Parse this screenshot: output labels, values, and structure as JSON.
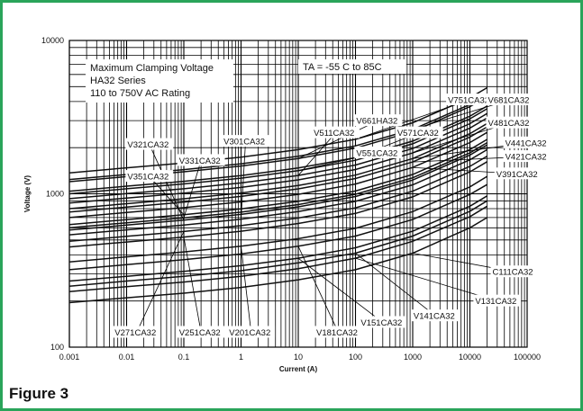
{
  "figure_label": "Figure 3",
  "chart_data": {
    "type": "line",
    "title_lines": [
      "Maximum Clamping Voltage",
      "HA32  Series",
      "110 to 750V AC Rating"
    ],
    "condition": "TA = -55 C to 85C",
    "xlabel": "Current (A)",
    "ylabel": "Voltage (V)",
    "x_scale": "log",
    "y_scale": "log",
    "xlim": [
      0.001,
      100000
    ],
    "ylim": [
      100,
      10000
    ],
    "x_ticks": [
      "0.001",
      "0.01",
      "0.1",
      "1",
      "10",
      "100",
      "1000",
      "10000",
      "100000"
    ],
    "y_ticks": [
      "100",
      "1000",
      "10000"
    ],
    "grid": true,
    "series": [
      {
        "name": "C111CA32",
        "x": [
          0.001,
          0.01,
          0.1,
          1,
          10,
          100,
          1000,
          10000,
          20000
        ],
        "y": [
          195,
          210,
          225,
          245,
          275,
          320,
          410,
          600,
          700
        ]
      },
      {
        "name": "V131CA32",
        "x": [
          0.001,
          0.01,
          0.1,
          1,
          10,
          100,
          1000,
          10000,
          20000
        ],
        "y": [
          230,
          248,
          266,
          290,
          325,
          380,
          490,
          710,
          830
        ]
      },
      {
        "name": "V141CA32",
        "x": [
          0.001,
          0.01,
          0.1,
          1,
          10,
          100,
          1000,
          10000,
          20000
        ],
        "y": [
          250,
          270,
          290,
          315,
          355,
          410,
          530,
          770,
          900
        ]
      },
      {
        "name": "V151CA32",
        "x": [
          0.001,
          0.01,
          0.1,
          1,
          10,
          100,
          1000,
          10000,
          20000
        ],
        "y": [
          270,
          290,
          312,
          340,
          380,
          445,
          570,
          830,
          970
        ]
      },
      {
        "name": "V181CA32",
        "x": [
          0.001,
          0.01,
          0.1,
          1,
          10,
          100,
          1000,
          10000,
          20000
        ],
        "y": [
          320,
          345,
          372,
          405,
          455,
          530,
          680,
          990,
          1150
        ]
      },
      {
        "name": "V201CA32",
        "x": [
          0.001,
          0.01,
          0.1,
          1,
          10,
          100,
          1000,
          10000,
          20000
        ],
        "y": [
          360,
          388,
          418,
          455,
          510,
          595,
          765,
          1110,
          1300
        ]
      },
      {
        "name": "V251CA32",
        "x": [
          0.001,
          0.01,
          0.1,
          1,
          10,
          100,
          1000,
          10000,
          20000
        ],
        "y": [
          450,
          485,
          522,
          570,
          640,
          745,
          955,
          1390,
          1620
        ]
      },
      {
        "name": "V271CA32",
        "x": [
          0.001,
          0.01,
          0.1,
          1,
          10,
          100,
          1000,
          10000,
          20000
        ],
        "y": [
          490,
          528,
          568,
          620,
          695,
          810,
          1040,
          1510,
          1760
        ]
      },
      {
        "name": "V301CA32",
        "x": [
          0.001,
          0.01,
          0.1,
          1,
          10,
          100,
          1000,
          10000,
          20000
        ],
        "y": [
          540,
          582,
          626,
          683,
          765,
          893,
          1145,
          1665,
          1940
        ]
      },
      {
        "name": "V321CA32",
        "x": [
          0.001,
          0.01,
          0.1,
          1,
          10,
          100,
          1000,
          10000,
          20000
        ],
        "y": [
          580,
          625,
          673,
          734,
          822,
          960,
          1230,
          1790,
          2085
        ]
      },
      {
        "name": "V331CA32",
        "x": [
          0.001,
          0.01,
          0.1,
          1,
          10,
          100,
          1000,
          10000,
          20000
        ],
        "y": [
          600,
          647,
          696,
          759,
          850,
          993,
          1272,
          1850,
          2155
        ]
      },
      {
        "name": "V351CA32",
        "x": [
          0.001,
          0.01,
          0.1,
          1,
          10,
          100,
          1000,
          10000,
          20000
        ],
        "y": [
          630,
          679,
          731,
          797,
          893,
          1043,
          1336,
          1943,
          2265
        ]
      },
      {
        "name": "V391CA32",
        "x": [
          0.001,
          0.01,
          0.1,
          1,
          10,
          100,
          1000,
          10000,
          20000
        ],
        "y": [
          700,
          755,
          812,
          886,
          992,
          1159,
          1485,
          2160,
          2515
        ]
      },
      {
        "name": "V421CA32",
        "x": [
          0.001,
          0.01,
          0.1,
          1,
          10,
          100,
          1000,
          10000,
          20000
        ],
        "y": [
          760,
          819,
          882,
          962,
          1077,
          1258,
          1612,
          2345,
          2730
        ]
      },
      {
        "name": "V441CA32",
        "x": [
          0.001,
          0.01,
          0.1,
          1,
          10,
          100,
          1000,
          10000,
          20000
        ],
        "y": [
          800,
          862,
          928,
          1012,
          1134,
          1325,
          1697,
          2468,
          2875
        ]
      },
      {
        "name": "V481CA32",
        "x": [
          0.001,
          0.01,
          0.1,
          1,
          10,
          100,
          1000,
          10000,
          20000
        ],
        "y": [
          870,
          938,
          1009,
          1101,
          1233,
          1440,
          1845,
          2684,
          3125
        ]
      },
      {
        "name": "V511CA32",
        "x": [
          0.001,
          0.01,
          0.1,
          1,
          10,
          100,
          1000,
          10000,
          20000
        ],
        "y": [
          930,
          1003,
          1079,
          1177,
          1318,
          1540,
          1972,
          2869,
          3340
        ]
      },
      {
        "name": "V551CA32",
        "x": [
          0.001,
          0.01,
          0.1,
          1,
          10,
          100,
          1000,
          10000,
          20000
        ],
        "y": [
          1000,
          1078,
          1160,
          1265,
          1417,
          1655,
          2120,
          3085,
          3590
        ]
      },
      {
        "name": "V571CA32",
        "x": [
          0.001,
          0.01,
          0.1,
          1,
          10,
          100,
          1000,
          10000,
          20000
        ],
        "y": [
          1040,
          1121,
          1207,
          1316,
          1474,
          1722,
          2205,
          3208,
          3735
        ]
      },
      {
        "name": "V661HA32",
        "x": [
          0.001,
          0.01,
          0.1,
          1,
          10,
          100,
          1000,
          10000,
          20000
        ],
        "y": [
          1200,
          1294,
          1392,
          1518,
          1700,
          1987,
          2545,
          3700,
          4310
        ]
      },
      {
        "name": "V681CA32",
        "x": [
          0.001,
          0.01,
          0.1,
          1,
          10,
          100,
          1000,
          10000,
          20000
        ],
        "y": [
          1240,
          1337,
          1439,
          1569,
          1757,
          2053,
          2630,
          3825,
          4455
        ]
      },
      {
        "name": "V751CA32",
        "x": [
          0.001,
          0.01,
          0.1,
          1,
          10,
          100,
          1000,
          10000,
          20000
        ],
        "y": [
          1370,
          1477,
          1590,
          1734,
          1942,
          2268,
          2905,
          4225,
          4920
        ]
      }
    ],
    "annotations": [
      {
        "label": "V751CA32",
        "x": 10000,
        "y": 4100
      },
      {
        "label": "V681CA32",
        "x": 50000,
        "y": 4100
      },
      {
        "label": "V481CA32",
        "x": 50000,
        "y": 2900
      },
      {
        "label": "V441CA32",
        "x": 100000,
        "y": 2150
      },
      {
        "label": "V421CA32",
        "x": 100000,
        "y": 1750
      },
      {
        "label": "V391CA32",
        "x": 70000,
        "y": 1350
      },
      {
        "label": "V661HA32",
        "x": 250,
        "y": 3000
      },
      {
        "label": "V571CA32",
        "x": 1300,
        "y": 2500
      },
      {
        "label": "V511CA32",
        "x": 45,
        "y": 2500
      },
      {
        "label": "V551CA32",
        "x": 250,
        "y": 1850
      },
      {
        "label": "V321CA32",
        "x": 0.025,
        "y": 2100
      },
      {
        "label": "V331CA32",
        "x": 0.2,
        "y": 1650
      },
      {
        "label": "V301CA32",
        "x": 1.2,
        "y": 2200
      },
      {
        "label": "V351CA32",
        "x": 0.025,
        "y": 1300
      },
      {
        "label": "C111CA32",
        "x": 60000,
        "y": 310
      },
      {
        "label": "V131CA32",
        "x": 30000,
        "y": 200
      },
      {
        "label": "V141CA32",
        "x": 2500,
        "y": 160
      },
      {
        "label": "V151CA32",
        "x": 300,
        "y": 145
      },
      {
        "label": "V181CA32",
        "x": 50,
        "y": 125
      },
      {
        "label": "V201CA32",
        "x": 1.5,
        "y": 125
      },
      {
        "label": "V251CA32",
        "x": 0.2,
        "y": 125
      },
      {
        "label": "V271CA32",
        "x": 0.015,
        "y": 125
      }
    ]
  }
}
